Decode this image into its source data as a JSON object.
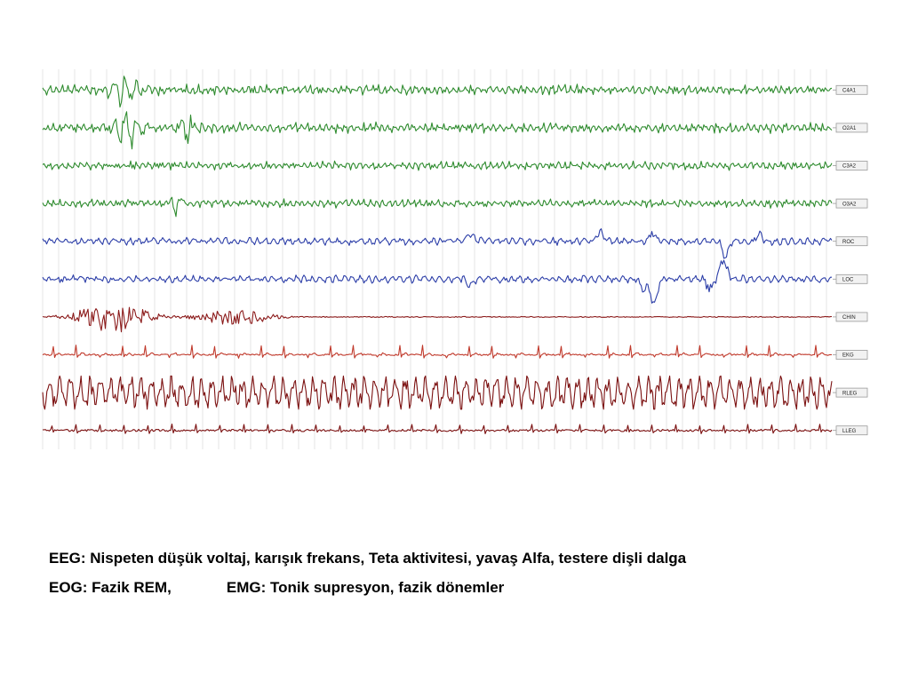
{
  "figure": {
    "channels": [
      {
        "label": "C4A1",
        "color": "#2e8b2e",
        "kind": "eeg",
        "amp": 5,
        "bursts": [
          [
            95,
            5,
            18,
            14
          ]
        ]
      },
      {
        "label": "O2A1",
        "color": "#2e8b2e",
        "kind": "eeg",
        "amp": 5,
        "bursts": [
          [
            98,
            10,
            16,
            22
          ],
          [
            168,
            8,
            10,
            14
          ]
        ]
      },
      {
        "label": "C3A2",
        "color": "#2e8b2e",
        "kind": "eeg",
        "amp": 4,
        "bursts": []
      },
      {
        "label": "O3A2",
        "color": "#2e8b2e",
        "kind": "eeg",
        "amp": 4,
        "bursts": [
          [
            155,
            4,
            8,
            10
          ]
        ]
      },
      {
        "label": "ROC",
        "color": "#2c3ea8",
        "kind": "eog",
        "amp": 4,
        "events": [
          [
            485,
            7,
            -1
          ],
          [
            632,
            12,
            -1
          ],
          [
            690,
            9,
            -1
          ],
          [
            772,
            18,
            1
          ],
          [
            810,
            8,
            -1
          ]
        ]
      },
      {
        "label": "LOC",
        "color": "#2c3ea8",
        "kind": "eog",
        "amp": 4,
        "events": [
          [
            485,
            7,
            1
          ],
          [
            680,
            10,
            1
          ],
          [
            692,
            28,
            1
          ],
          [
            755,
            10,
            1
          ],
          [
            770,
            20,
            -1
          ]
        ]
      },
      {
        "label": "CHIN",
        "color": "#8b1a1a",
        "kind": "chin",
        "amp": 0.5,
        "bursts": [
          [
            35,
            95,
            18
          ],
          [
            170,
            100,
            9
          ]
        ]
      },
      {
        "label": "EKG",
        "color": "#c0392b",
        "kind": "ekg",
        "amp": 2,
        "rate": 26
      },
      {
        "label": "RLEG",
        "color": "#7b1010",
        "kind": "leg",
        "amp": 17
      },
      {
        "label": "LLEG",
        "color": "#7b1010",
        "kind": "lleg",
        "amp": 2,
        "rate": 27
      }
    ]
  },
  "caption": {
    "eeg_line": "EEG: Nispeten düşük voltaj, karışık frekans, Teta aktivitesi, yavaş Alfa, testere dişli dalga",
    "eog_text": "EOG: Fazik REM,",
    "emg_text": "EMG: Tonik supresyon, fazik dönemler"
  }
}
